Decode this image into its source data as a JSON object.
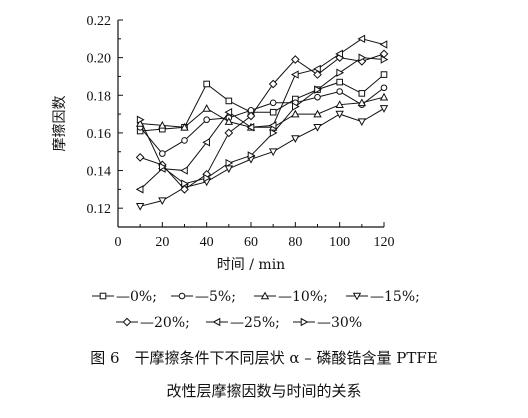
{
  "chart_data": {
    "type": "line",
    "xlabel": "时间 / min",
    "ylabel": "摩擦因数",
    "xlim": [
      0,
      120
    ],
    "ylim": [
      0.11,
      0.22
    ],
    "x_ticks": [
      "0",
      "20",
      "40",
      "60",
      "80",
      "100",
      "120"
    ],
    "y_ticks": [
      "0.12",
      "0.14",
      "0.16",
      "0.18",
      "0.20",
      "0.22"
    ],
    "x": [
      10,
      20,
      30,
      40,
      50,
      60,
      70,
      80,
      90,
      100,
      110,
      120
    ],
    "grid": false,
    "legend_position": "bottom",
    "series": [
      {
        "name": "0%",
        "marker": "square",
        "values": [
          0.161,
          0.162,
          0.163,
          0.186,
          0.177,
          0.171,
          0.171,
          0.178,
          0.183,
          0.187,
          0.181,
          0.191
        ]
      },
      {
        "name": "5%",
        "marker": "circle",
        "values": [
          0.163,
          0.149,
          0.156,
          0.167,
          0.168,
          0.172,
          0.176,
          0.176,
          0.179,
          0.182,
          0.175,
          0.184
        ]
      },
      {
        "name": "10%",
        "marker": "triangle-up",
        "values": [
          0.165,
          0.164,
          0.163,
          0.173,
          0.166,
          0.163,
          0.163,
          0.17,
          0.17,
          0.175,
          0.176,
          0.179
        ]
      },
      {
        "name": "15%",
        "marker": "triangle-down",
        "values": [
          0.121,
          0.124,
          0.131,
          0.134,
          0.141,
          0.146,
          0.15,
          0.157,
          0.163,
          0.17,
          0.166,
          0.173
        ]
      },
      {
        "name": "20%",
        "marker": "diamond",
        "values": [
          0.147,
          0.143,
          0.13,
          0.138,
          0.16,
          0.169,
          0.186,
          0.199,
          0.191,
          0.2,
          0.198,
          0.202
        ]
      },
      {
        "name": "25%",
        "marker": "triangle-left",
        "values": [
          0.13,
          0.141,
          0.14,
          0.155,
          0.171,
          0.163,
          0.164,
          0.191,
          0.194,
          0.202,
          0.21,
          0.207
        ]
      },
      {
        "name": "30%",
        "marker": "triangle-right",
        "values": [
          0.167,
          0.142,
          0.133,
          0.136,
          0.144,
          0.148,
          0.16,
          0.174,
          0.183,
          0.192,
          0.2,
          0.199
        ]
      }
    ]
  },
  "legend_rows": [
    [
      {
        "symbol": "square",
        "label": "—0%;"
      },
      {
        "symbol": "circle",
        "label": "—5%;"
      },
      {
        "symbol": "triangle-up",
        "label": "—10%;"
      },
      {
        "symbol": "triangle-down",
        "label": "—15%;"
      }
    ],
    [
      {
        "symbol": "diamond",
        "label": "—20%;"
      },
      {
        "symbol": "triangle-left",
        "label": "—25%;"
      },
      {
        "symbol": "triangle-right",
        "label": "—30%"
      }
    ]
  ],
  "caption": {
    "line1": "图 6　干摩擦条件下不同层状 α – 磷酸锆含量 PTFE",
    "line2": "改性层摩擦因数与时间的关系"
  },
  "colors": {
    "line": "#111111",
    "background": "#ffffff"
  }
}
